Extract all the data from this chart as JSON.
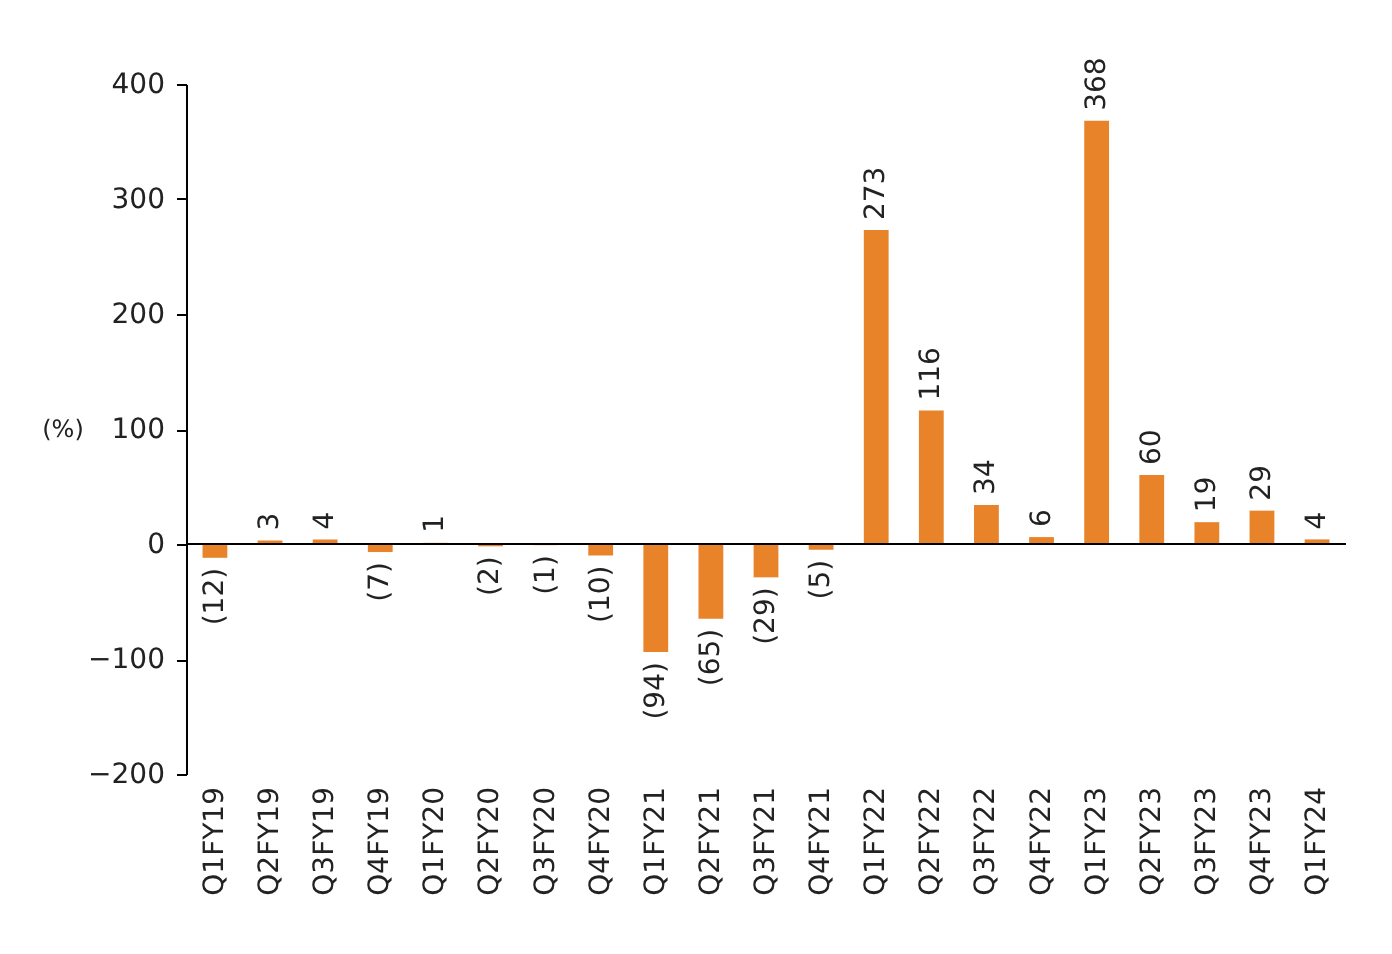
{
  "chart_data": {
    "type": "bar",
    "ylabel": "(%)",
    "categories": [
      "Q1FY19",
      "Q2FY19",
      "Q3FY19",
      "Q4FY19",
      "Q1FY20",
      "Q2FY20",
      "Q3FY20",
      "Q4FY20",
      "Q1FY21",
      "Q2FY21",
      "Q3FY21",
      "Q4FY21",
      "Q1FY22",
      "Q2FY22",
      "Q3FY22",
      "Q4FY22",
      "Q1FY23",
      "Q2FY23",
      "Q3FY23",
      "Q4FY23",
      "Q1FY24"
    ],
    "values": [
      -12,
      3,
      4,
      -7,
      1,
      -2,
      -1,
      -10,
      -94,
      -65,
      -29,
      -5,
      273,
      116,
      34,
      6,
      368,
      60,
      19,
      29,
      4
    ],
    "value_labels": [
      "(12)",
      "3",
      "4",
      "(7)",
      "1",
      "(2)",
      "(1)",
      "(10)",
      "(94)",
      "(65)",
      "(29)",
      "(5)",
      "273",
      "116",
      "34",
      "6",
      "368",
      "60",
      "19",
      "29",
      "4"
    ],
    "color": "#e8832a",
    "ylim": [
      -200,
      400
    ],
    "yticks": [
      -200,
      -100,
      0,
      100,
      200,
      300,
      400
    ]
  }
}
